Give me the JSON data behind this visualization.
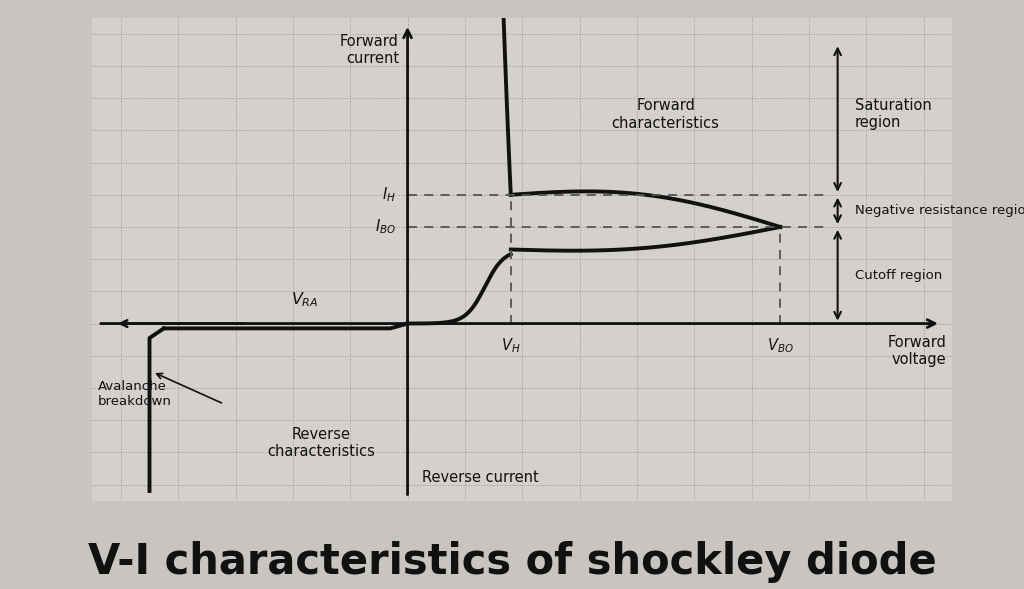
{
  "title": "V-I characteristics of shockley diode",
  "title_fontsize": 30,
  "title_fontweight": "bold",
  "bg_color": "#c8c5c0",
  "plot_bg_color": "#d4d0cb",
  "grid_color": "#999590",
  "curve_color": "#111111",
  "xlim": [
    -5.5,
    9.5
  ],
  "ylim": [
    -5.5,
    9.5
  ],
  "VH": 1.8,
  "VBO": 6.5,
  "IH": 4.0,
  "IBO": 3.0,
  "VRA": -4.5,
  "IRA": -0.15,
  "axis_label_forward_current": "Forward\ncurrent",
  "axis_label_forward_voltage": "Forward\nvoltage",
  "axis_label_reverse_current": "Reverse current",
  "label_forward_char": "Forward\ncharacteristics",
  "label_reverse_char": "Reverse\ncharacteristics",
  "label_saturation": "Saturation\nregion",
  "label_neg_resistance": "Negative resistance region",
  "label_cutoff": "Cutoff region",
  "label_avalanche": "Avalanche\nbreakdown",
  "label_VH": "$V_H$",
  "label_VBO": "$V_{BO}$",
  "label_VRA": "$V_{RA}$",
  "label_IH": "$I_H$",
  "label_IBO": "$I_{BO}$"
}
